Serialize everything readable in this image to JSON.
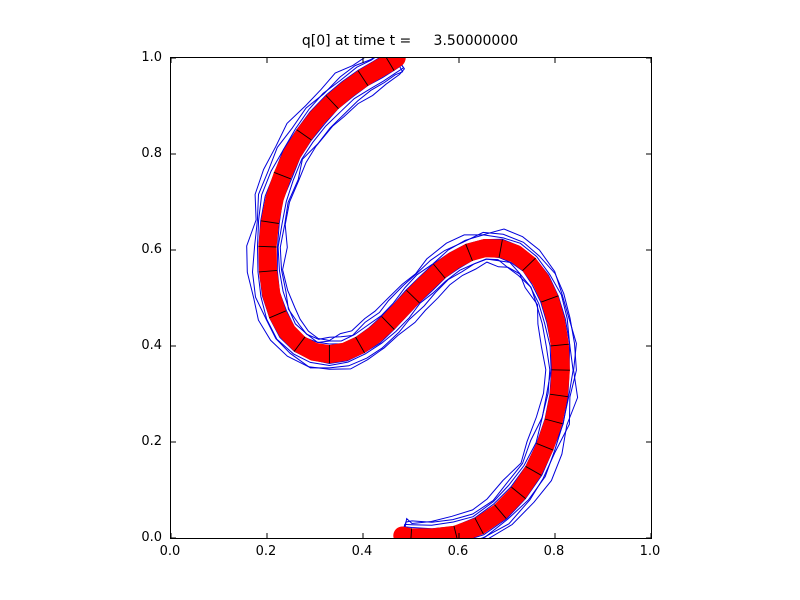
{
  "chart_data": {
    "type": "contour",
    "title": "q[0] at time t =     3.50000000",
    "xlim": [
      0.0,
      1.0
    ],
    "ylim": [
      0.0,
      1.0
    ],
    "xtick_labels": [
      "0.0",
      "0.2",
      "0.4",
      "0.6",
      "0.8",
      "1.0"
    ],
    "ytick_labels": [
      "0.0",
      "0.2",
      "0.4",
      "0.6",
      "0.8",
      "1.0"
    ],
    "colors": {
      "band": "#ff0000",
      "contour_lines": "#0000dd",
      "mesh": "#000000",
      "axis": "#000000",
      "background": "#ffffff"
    },
    "band_half_width": 0.019,
    "contour_offsets": [
      0.019,
      0.024,
      0.029,
      0.035
    ],
    "centerline": [
      [
        0.47,
        1.0
      ],
      [
        0.455,
        0.99
      ],
      [
        0.43,
        0.976
      ],
      [
        0.4,
        0.958
      ],
      [
        0.368,
        0.935
      ],
      [
        0.336,
        0.908
      ],
      [
        0.305,
        0.876
      ],
      [
        0.277,
        0.84
      ],
      [
        0.252,
        0.8
      ],
      [
        0.232,
        0.755
      ],
      [
        0.216,
        0.708
      ],
      [
        0.206,
        0.658
      ],
      [
        0.201,
        0.607
      ],
      [
        0.202,
        0.556
      ],
      [
        0.209,
        0.508
      ],
      [
        0.222,
        0.466
      ],
      [
        0.242,
        0.43
      ],
      [
        0.268,
        0.404
      ],
      [
        0.298,
        0.388
      ],
      [
        0.33,
        0.383
      ],
      [
        0.362,
        0.388
      ],
      [
        0.394,
        0.402
      ],
      [
        0.424,
        0.423
      ],
      [
        0.452,
        0.448
      ],
      [
        0.478,
        0.475
      ],
      [
        0.504,
        0.503
      ],
      [
        0.531,
        0.53
      ],
      [
        0.559,
        0.556
      ],
      [
        0.589,
        0.578
      ],
      [
        0.621,
        0.595
      ],
      [
        0.654,
        0.604
      ],
      [
        0.687,
        0.603
      ],
      [
        0.718,
        0.592
      ],
      [
        0.746,
        0.57
      ],
      [
        0.77,
        0.538
      ],
      [
        0.789,
        0.498
      ],
      [
        0.802,
        0.452
      ],
      [
        0.81,
        0.402
      ],
      [
        0.812,
        0.35
      ],
      [
        0.808,
        0.297
      ],
      [
        0.797,
        0.243
      ],
      [
        0.779,
        0.19
      ],
      [
        0.755,
        0.14
      ],
      [
        0.724,
        0.094
      ],
      [
        0.686,
        0.055
      ],
      [
        0.642,
        0.025
      ],
      [
        0.594,
        0.007
      ],
      [
        0.545,
        0.001
      ],
      [
        0.5,
        0.001
      ],
      [
        0.482,
        0.005
      ]
    ]
  }
}
